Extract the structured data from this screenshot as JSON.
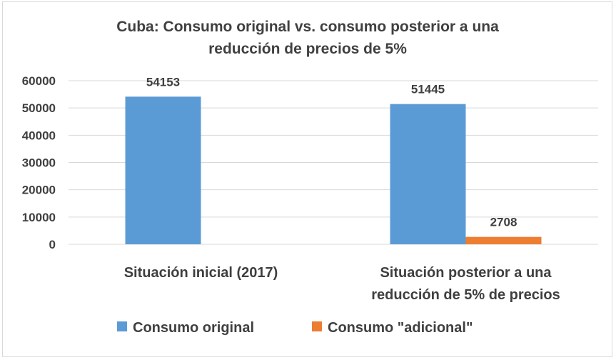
{
  "chart_data": {
    "type": "bar",
    "title_lines": [
      "Cuba: Consumo original vs. consumo posterior a una",
      "reducción de precios de 5%"
    ],
    "categories": [
      [
        "Situación inicial (2017)"
      ],
      [
        "Situación posterior a una",
        "reducción de 5% de precios"
      ]
    ],
    "series": [
      {
        "name": "Consumo original",
        "color": "#5b9bd5",
        "values": [
          54153,
          51445
        ]
      },
      {
        "name": "Consumo \"adicional\"",
        "color": "#ed7d31",
        "values": [
          null,
          2708
        ]
      }
    ],
    "y_ticks": [
      0,
      10000,
      20000,
      30000,
      40000,
      50000,
      60000
    ],
    "ylim": [
      0,
      60000
    ],
    "grid": true,
    "legend_position": "bottom"
  }
}
